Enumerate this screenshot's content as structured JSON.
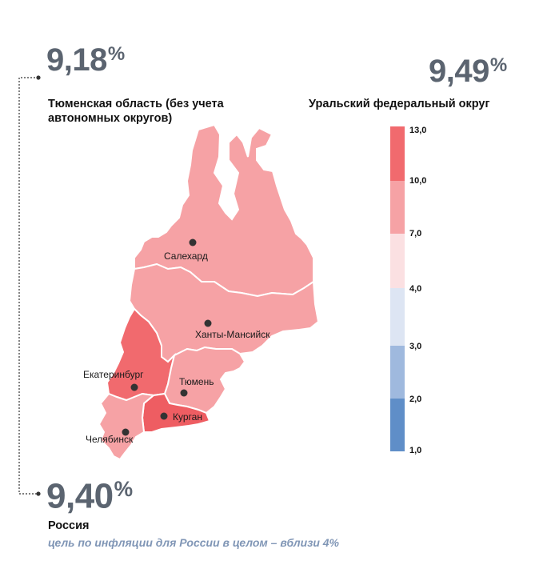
{
  "tyumen_region": {
    "value": "9,18",
    "unit": "%",
    "label": "Тюменская область (без учета автономных округов)"
  },
  "ural_district": {
    "value": "9,49",
    "unit": "%",
    "label": "Уральский федеральный округ"
  },
  "russia": {
    "value": "9,40",
    "unit": "%",
    "label": "Россия",
    "note": "цель по инфляции для России в целом – вблизи 4%"
  },
  "cities": {
    "salekhard": "Салехард",
    "khanty_mansiysk": "Ханты-Мансийск",
    "yekaterinburg": "Екатеринбург",
    "tyumen": "Тюмень",
    "kurgan": "Курган",
    "chelyabinsk": "Челябинск"
  },
  "legend": {
    "ticks": [
      "13,0",
      "10,0",
      "7,0",
      "4,0",
      "3,0",
      "2,0",
      "1,0"
    ],
    "bins": [
      {
        "from": 10.0,
        "to": 13.0,
        "color": "#f16a6e"
      },
      {
        "from": 7.0,
        "to": 10.0,
        "color": "#f6a2a5"
      },
      {
        "from": 4.0,
        "to": 7.0,
        "color": "#fbe0e2"
      },
      {
        "from": 3.0,
        "to": 4.0,
        "color": "#dde5f3"
      },
      {
        "from": 2.0,
        "to": 3.0,
        "color": "#9fb9de"
      },
      {
        "from": 1.0,
        "to": 2.0,
        "color": "#5f8ec8"
      }
    ]
  },
  "regions": [
    {
      "name": "Ямало-Ненецкий автономный округ",
      "bin": "7,0–10,0",
      "color": "#f6a2a5"
    },
    {
      "name": "Ханты-Мансийский автономный округ",
      "bin": "7,0–10,0",
      "color": "#f6a2a5"
    },
    {
      "name": "Свердловская область",
      "bin": "10,0–13,0",
      "color": "#f16a6e"
    },
    {
      "name": "Тюменская область",
      "bin": "7,0–10,0",
      "color": "#f6a2a5"
    },
    {
      "name": "Курганская область",
      "bin": "10,0–13,0",
      "color": "#ee5d62"
    },
    {
      "name": "Челябинская область",
      "bin": "7,0–10,0",
      "color": "#f6a2a5"
    }
  ]
}
